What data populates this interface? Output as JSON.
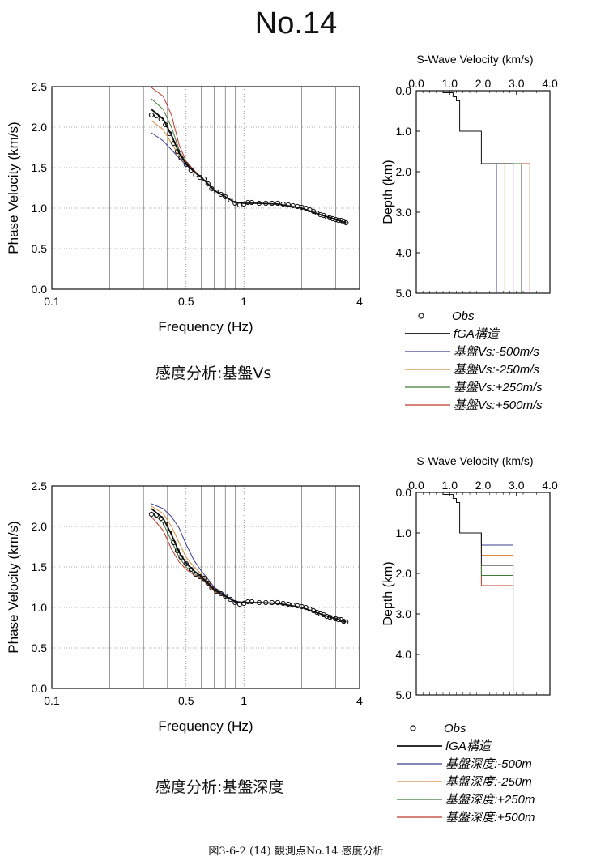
{
  "title": "No.14",
  "figure_caption": "図3-6-2 (14) 観測点No.14  感度分析",
  "colors": {
    "base": "#111111",
    "minus500": "#3a3f8f",
    "minus250": "#d88a3a",
    "plus250": "#3f7a3a",
    "plus500": "#c0392b"
  },
  "panels": [
    {
      "caption": "感度分析:基盤Vs",
      "legend": [
        "Obs",
        "fGA構造",
        "基盤Vs:-500m/s",
        "基盤Vs:-250m/s",
        "基盤Vs:+250m/s",
        "基盤Vs:+500m/s"
      ]
    },
    {
      "caption": "感度分析:基盤深度",
      "legend": [
        "Obs",
        "fGA構造",
        "基盤深度:-500m",
        "基盤深度:-250m",
        "基盤深度:+250m",
        "基盤深度:+500m"
      ]
    }
  ],
  "chart_data": [
    {
      "type": "line",
      "xlabel": "Frequency (Hz)",
      "ylabel": "Phase Velocity (km/s)",
      "xscale": "log",
      "xlim": [
        0.1,
        4
      ],
      "ylim": [
        0,
        2.5
      ],
      "xticks": [
        "0.1",
        "0.5",
        "1",
        "4"
      ],
      "yticks": [
        "0.0",
        "0.5",
        "1.0",
        "1.5",
        "2.0",
        "2.5"
      ],
      "observed": {
        "name": "Obs",
        "x": [
          0.33,
          0.35,
          0.37,
          0.39,
          0.41,
          0.43,
          0.45,
          0.47,
          0.5,
          0.53,
          0.56,
          0.59,
          0.62,
          0.65,
          0.68,
          0.72,
          0.76,
          0.8,
          0.85,
          0.9,
          0.95,
          1.0,
          1.05,
          1.1,
          1.2,
          1.3,
          1.4,
          1.5,
          1.6,
          1.7,
          1.8,
          1.9,
          2.0,
          2.1,
          2.2,
          2.3,
          2.4,
          2.5,
          2.6,
          2.7,
          2.8,
          2.9,
          3.0,
          3.1,
          3.2,
          3.3,
          3.4
        ],
        "y": [
          2.15,
          2.14,
          2.1,
          2.03,
          1.92,
          1.8,
          1.7,
          1.62,
          1.54,
          1.47,
          1.41,
          1.38,
          1.36,
          1.3,
          1.24,
          1.2,
          1.17,
          1.14,
          1.1,
          1.06,
          1.04,
          1.05,
          1.07,
          1.07,
          1.06,
          1.06,
          1.06,
          1.06,
          1.05,
          1.04,
          1.03,
          1.02,
          1.01,
          1.0,
          0.98,
          0.96,
          0.94,
          0.92,
          0.91,
          0.89,
          0.88,
          0.87,
          0.86,
          0.85,
          0.85,
          0.83,
          0.82
        ]
      },
      "series": [
        {
          "name": "fGA構造",
          "x": [
            0.33,
            0.38,
            0.42,
            0.46,
            0.5,
            0.55,
            0.6,
            0.65,
            0.7,
            0.8,
            0.9,
            1.0,
            1.2,
            1.5,
            2.0,
            2.5,
            3.0,
            3.4
          ],
          "y": [
            2.22,
            2.1,
            1.9,
            1.68,
            1.55,
            1.45,
            1.38,
            1.3,
            1.22,
            1.14,
            1.07,
            1.06,
            1.06,
            1.05,
            1.0,
            0.92,
            0.86,
            0.82
          ]
        },
        {
          "name": "基盤Vs:-500m/s",
          "x": [
            0.33,
            0.38,
            0.42,
            0.46,
            0.5,
            0.55,
            0.6,
            0.65,
            0.7,
            0.8,
            0.9,
            1.0,
            1.2,
            1.5,
            2.0,
            2.5,
            3.0,
            3.4
          ],
          "y": [
            1.93,
            1.83,
            1.72,
            1.62,
            1.53,
            1.45,
            1.38,
            1.3,
            1.22,
            1.14,
            1.07,
            1.06,
            1.06,
            1.05,
            1.0,
            0.92,
            0.86,
            0.82
          ]
        },
        {
          "name": "基盤Vs:-250m/s",
          "x": [
            0.33,
            0.38,
            0.42,
            0.46,
            0.5,
            0.55,
            0.6,
            0.65,
            0.7,
            0.8,
            0.9,
            1.0,
            1.2,
            1.5,
            2.0,
            2.5,
            3.0,
            3.4
          ],
          "y": [
            2.08,
            1.97,
            1.8,
            1.65,
            1.54,
            1.45,
            1.38,
            1.3,
            1.22,
            1.14,
            1.07,
            1.06,
            1.06,
            1.05,
            1.0,
            0.92,
            0.86,
            0.82
          ]
        },
        {
          "name": "基盤Vs:+250m/s",
          "x": [
            0.33,
            0.38,
            0.42,
            0.46,
            0.5,
            0.55,
            0.6,
            0.65,
            0.7,
            0.8,
            0.9,
            1.0,
            1.2,
            1.5,
            2.0,
            2.5,
            3.0,
            3.4
          ],
          "y": [
            2.35,
            2.22,
            2.0,
            1.72,
            1.56,
            1.46,
            1.38,
            1.3,
            1.22,
            1.14,
            1.07,
            1.06,
            1.06,
            1.05,
            1.0,
            0.92,
            0.86,
            0.82
          ]
        },
        {
          "name": "基盤Vs:+500m/s",
          "x": [
            0.33,
            0.38,
            0.42,
            0.46,
            0.5,
            0.55,
            0.6,
            0.65,
            0.7,
            0.8,
            0.9,
            1.0,
            1.2,
            1.5,
            2.0,
            2.5,
            3.0,
            3.4
          ],
          "y": [
            2.49,
            2.38,
            2.15,
            1.78,
            1.58,
            1.47,
            1.38,
            1.3,
            1.22,
            1.14,
            1.07,
            1.06,
            1.06,
            1.05,
            1.0,
            0.92,
            0.86,
            0.82
          ]
        }
      ]
    },
    {
      "type": "line",
      "title": "S-Wave Velocity (km/s)",
      "ylabel": "Depth (km)",
      "xlim": [
        0,
        4
      ],
      "ylim": [
        5,
        0
      ],
      "xticks": [
        "0.0",
        "1.0",
        "2.0",
        "3.0",
        "4.0"
      ],
      "yticks": [
        "0.0",
        "1.0",
        "2.0",
        "3.0",
        "4.0",
        "5.0"
      ],
      "series": [
        {
          "name": "fGA構造",
          "x": [
            0.8,
            0.8,
            1.1,
            1.1,
            1.2,
            1.2,
            1.3,
            1.3,
            1.95,
            1.95,
            2.9,
            2.9
          ],
          "y": [
            0,
            0.05,
            0.05,
            0.15,
            0.15,
            0.25,
            0.25,
            1.0,
            1.0,
            1.8,
            1.8,
            5.0
          ]
        },
        {
          "name": "基盤Vs:-500m/s",
          "x": [
            1.95,
            2.4,
            2.4
          ],
          "y": [
            1.8,
            1.8,
            5.0
          ]
        },
        {
          "name": "基盤Vs:-250m/s",
          "x": [
            1.95,
            2.65,
            2.65
          ],
          "y": [
            1.8,
            1.8,
            5.0
          ]
        },
        {
          "name": "基盤Vs:+250m/s",
          "x": [
            1.95,
            3.15,
            3.15
          ],
          "y": [
            1.8,
            1.8,
            5.0
          ]
        },
        {
          "name": "基盤Vs:+500m/s",
          "x": [
            1.95,
            3.4,
            3.4
          ],
          "y": [
            1.8,
            1.8,
            5.0
          ]
        }
      ]
    },
    {
      "type": "line",
      "xlabel": "Frequency (Hz)",
      "ylabel": "Phase Velocity (km/s)",
      "xscale": "log",
      "xlim": [
        0.1,
        4
      ],
      "ylim": [
        0,
        2.5
      ],
      "xticks": [
        "0.1",
        "0.5",
        "1",
        "4"
      ],
      "yticks": [
        "0.0",
        "0.5",
        "1.0",
        "1.5",
        "2.0",
        "2.5"
      ],
      "observed": {
        "name": "Obs",
        "x": [
          0.33,
          0.35,
          0.37,
          0.39,
          0.41,
          0.43,
          0.45,
          0.47,
          0.5,
          0.53,
          0.56,
          0.59,
          0.62,
          0.65,
          0.68,
          0.72,
          0.76,
          0.8,
          0.85,
          0.9,
          0.95,
          1.0,
          1.05,
          1.1,
          1.2,
          1.3,
          1.4,
          1.5,
          1.6,
          1.7,
          1.8,
          1.9,
          2.0,
          2.1,
          2.2,
          2.3,
          2.4,
          2.5,
          2.6,
          2.7,
          2.8,
          2.9,
          3.0,
          3.1,
          3.2,
          3.3,
          3.4
        ],
        "y": [
          2.15,
          2.14,
          2.1,
          2.03,
          1.92,
          1.8,
          1.7,
          1.62,
          1.54,
          1.47,
          1.41,
          1.38,
          1.36,
          1.3,
          1.24,
          1.2,
          1.17,
          1.14,
          1.1,
          1.06,
          1.04,
          1.05,
          1.07,
          1.07,
          1.06,
          1.06,
          1.06,
          1.06,
          1.05,
          1.04,
          1.03,
          1.02,
          1.01,
          1.0,
          0.98,
          0.96,
          0.94,
          0.92,
          0.91,
          0.89,
          0.88,
          0.87,
          0.86,
          0.85,
          0.85,
          0.83,
          0.82
        ]
      },
      "series": [
        {
          "name": "fGA構造",
          "x": [
            0.33,
            0.38,
            0.42,
            0.46,
            0.5,
            0.55,
            0.6,
            0.65,
            0.7,
            0.8,
            0.9,
            1.0,
            1.2,
            1.5,
            2.0,
            2.5,
            3.0,
            3.4
          ],
          "y": [
            2.22,
            2.1,
            1.9,
            1.68,
            1.55,
            1.45,
            1.38,
            1.3,
            1.22,
            1.14,
            1.07,
            1.06,
            1.06,
            1.05,
            1.0,
            0.92,
            0.86,
            0.82
          ]
        },
        {
          "name": "基盤深度:-500m",
          "x": [
            0.33,
            0.38,
            0.42,
            0.46,
            0.5,
            0.55,
            0.6,
            0.65,
            0.7,
            0.8,
            0.9,
            1.0,
            1.2,
            1.5,
            2.0,
            2.5,
            3.0,
            3.4
          ],
          "y": [
            2.28,
            2.22,
            2.12,
            1.98,
            1.78,
            1.58,
            1.45,
            1.35,
            1.25,
            1.15,
            1.08,
            1.06,
            1.06,
            1.05,
            1.0,
            0.92,
            0.86,
            0.82
          ]
        },
        {
          "name": "基盤深度:-250m",
          "x": [
            0.33,
            0.38,
            0.42,
            0.46,
            0.5,
            0.55,
            0.6,
            0.65,
            0.7,
            0.8,
            0.9,
            1.0,
            1.2,
            1.5,
            2.0,
            2.5,
            3.0,
            3.4
          ],
          "y": [
            2.25,
            2.16,
            2.0,
            1.8,
            1.62,
            1.5,
            1.41,
            1.32,
            1.23,
            1.14,
            1.07,
            1.06,
            1.06,
            1.05,
            1.0,
            0.92,
            0.86,
            0.82
          ]
        },
        {
          "name": "基盤深度:+250m",
          "x": [
            0.33,
            0.38,
            0.42,
            0.46,
            0.5,
            0.55,
            0.6,
            0.65,
            0.7,
            0.8,
            0.9,
            1.0,
            1.2,
            1.5,
            2.0,
            2.5,
            3.0,
            3.4
          ],
          "y": [
            2.18,
            2.04,
            1.82,
            1.62,
            1.5,
            1.42,
            1.36,
            1.29,
            1.21,
            1.13,
            1.07,
            1.06,
            1.06,
            1.05,
            1.0,
            0.92,
            0.86,
            0.82
          ]
        },
        {
          "name": "基盤深度:+500m",
          "x": [
            0.33,
            0.38,
            0.42,
            0.46,
            0.5,
            0.55,
            0.6,
            0.65,
            0.7,
            0.8,
            0.9,
            1.0,
            1.2,
            1.5,
            2.0,
            2.5,
            3.0,
            3.4
          ],
          "y": [
            2.12,
            1.95,
            1.72,
            1.56,
            1.47,
            1.4,
            1.35,
            1.28,
            1.2,
            1.13,
            1.07,
            1.06,
            1.06,
            1.05,
            1.0,
            0.92,
            0.86,
            0.82
          ]
        }
      ]
    },
    {
      "type": "line",
      "title": "S-Wave Velocity (km/s)",
      "ylabel": "Depth (km)",
      "xlim": [
        0,
        4
      ],
      "ylim": [
        5,
        0
      ],
      "xticks": [
        "0.0",
        "1.0",
        "2.0",
        "3.0",
        "4.0"
      ],
      "yticks": [
        "0.0",
        "1.0",
        "2.0",
        "3.0",
        "4.0",
        "5.0"
      ],
      "series": [
        {
          "name": "fGA構造",
          "x": [
            0.8,
            0.8,
            1.1,
            1.1,
            1.2,
            1.2,
            1.3,
            1.3,
            1.95,
            1.95,
            2.9,
            2.9
          ],
          "y": [
            0,
            0.05,
            0.05,
            0.15,
            0.15,
            0.25,
            0.25,
            1.0,
            1.0,
            1.8,
            1.8,
            5.0
          ]
        },
        {
          "name": "基盤深度:-500m",
          "x": [
            1.95,
            1.95,
            2.9
          ],
          "y": [
            1.0,
            1.3,
            1.3
          ]
        },
        {
          "name": "基盤深度:-250m",
          "x": [
            1.95,
            1.95,
            2.9
          ],
          "y": [
            1.0,
            1.55,
            1.55
          ]
        },
        {
          "name": "基盤深度:+250m",
          "x": [
            1.95,
            1.95,
            2.9
          ],
          "y": [
            1.8,
            2.05,
            2.05
          ]
        },
        {
          "name": "基盤深度:+500m",
          "x": [
            1.95,
            1.95,
            2.9
          ],
          "y": [
            1.8,
            2.3,
            2.3
          ]
        }
      ]
    }
  ]
}
